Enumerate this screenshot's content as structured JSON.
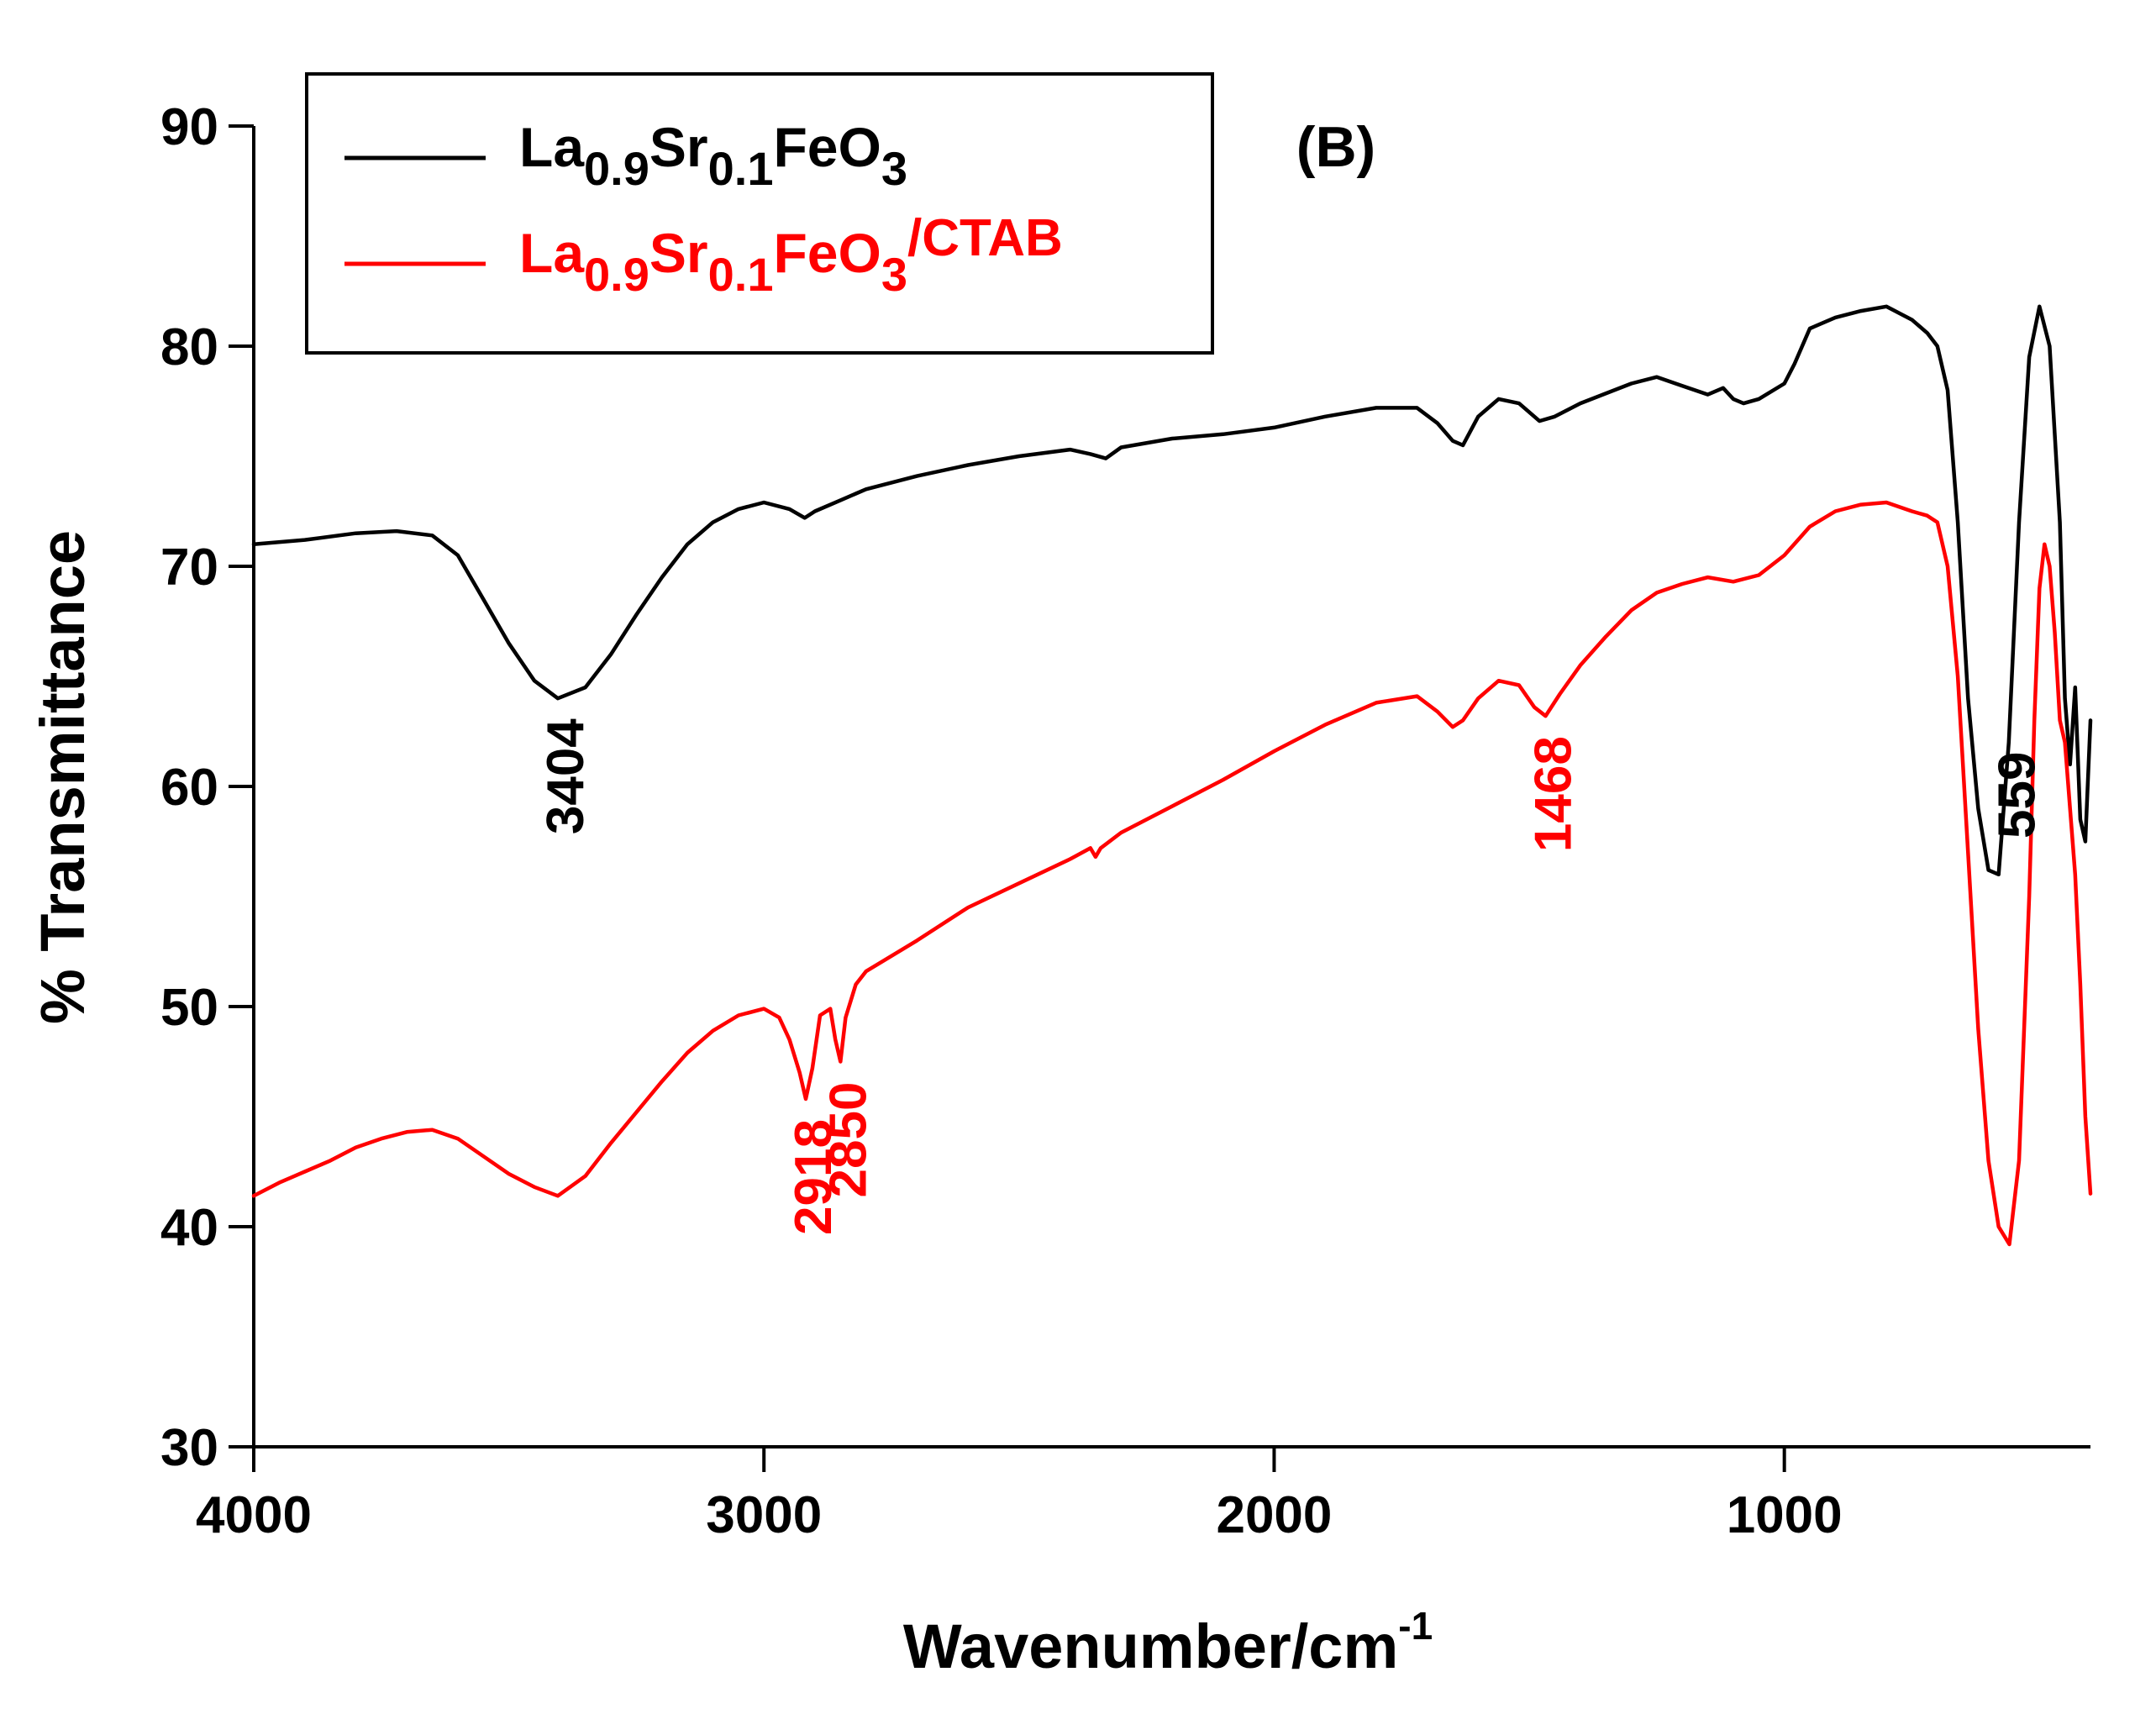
{
  "chart_data": {
    "type": "line",
    "title": "",
    "panel_label": "(B)",
    "xlabel": "Wavenumber/cm",
    "xlabel_sup": "-1",
    "ylabel": "% Transmittance",
    "xlim": [
      4000,
      400
    ],
    "ylim": [
      30,
      90
    ],
    "x_ticks": [
      4000,
      3000,
      2000,
      1000
    ],
    "x_tick_labels": [
      "4000",
      "3000",
      "2000",
      "1000"
    ],
    "y_ticks": [
      30,
      40,
      50,
      60,
      70,
      80,
      90
    ],
    "y_tick_labels": [
      "30",
      "40",
      "50",
      "60",
      "70",
      "80",
      "90"
    ],
    "grid": false,
    "legend_position": "top-left",
    "series": [
      {
        "name": "La0.9Sr0.1FeO3",
        "legend_parts": [
          {
            "text": "La",
            "sub": false
          },
          {
            "text": "0.9",
            "sub": true
          },
          {
            "text": "Sr",
            "sub": false
          },
          {
            "text": "0.1",
            "sub": true
          },
          {
            "text": "FeO",
            "sub": false
          },
          {
            "text": "3",
            "sub": true
          }
        ],
        "color": "#000000",
        "x": [
          4000,
          3900,
          3800,
          3720,
          3650,
          3600,
          3550,
          3500,
          3450,
          3404,
          3350,
          3300,
          3250,
          3200,
          3150,
          3100,
          3050,
          3000,
          2950,
          2920,
          2900,
          2850,
          2800,
          2700,
          2600,
          2500,
          2400,
          2360,
          2330,
          2300,
          2200,
          2100,
          2000,
          1900,
          1800,
          1720,
          1680,
          1650,
          1630,
          1600,
          1560,
          1520,
          1480,
          1450,
          1400,
          1300,
          1250,
          1200,
          1150,
          1120,
          1100,
          1080,
          1050,
          1000,
          980,
          950,
          900,
          850,
          800,
          750,
          720,
          700,
          680,
          660,
          640,
          620,
          600,
          580,
          560,
          540,
          520,
          500,
          480,
          470,
          460,
          450,
          440,
          430,
          420,
          410,
          400
        ],
        "values": [
          71.0,
          71.2,
          71.5,
          71.6,
          71.4,
          70.5,
          68.5,
          66.5,
          64.8,
          64.0,
          64.5,
          66.0,
          67.8,
          69.5,
          71.0,
          72.0,
          72.6,
          72.9,
          72.6,
          72.2,
          72.5,
          73.0,
          73.5,
          74.1,
          74.6,
          75.0,
          75.3,
          75.1,
          74.9,
          75.4,
          75.8,
          76.0,
          76.3,
          76.8,
          77.2,
          77.2,
          76.5,
          75.7,
          75.5,
          76.8,
          77.6,
          77.4,
          76.6,
          76.8,
          77.4,
          78.3,
          78.6,
          78.2,
          77.8,
          78.1,
          77.6,
          77.4,
          77.6,
          78.3,
          79.2,
          80.8,
          81.3,
          81.6,
          81.8,
          81.2,
          80.6,
          80.0,
          78.0,
          72.0,
          64.0,
          59.0,
          56.2,
          56.0,
          62.0,
          72.0,
          79.5,
          81.8,
          80.0,
          76.0,
          72.0,
          64.0,
          61.0,
          64.5,
          58.5,
          57.5,
          63.0
        ]
      },
      {
        "name": "La0.9Sr0.1FeO3/CTAB",
        "legend_parts": [
          {
            "text": "La",
            "sub": false
          },
          {
            "text": "0.9",
            "sub": true
          },
          {
            "text": "Sr",
            "sub": false
          },
          {
            "text": "0.1",
            "sub": true
          },
          {
            "text": "FeO",
            "sub": false
          },
          {
            "text": "3",
            "sub": true
          },
          {
            "text": "/CTAB",
            "sub": false,
            "raised": true
          }
        ],
        "color": "#ff0000",
        "x": [
          4000,
          3950,
          3900,
          3850,
          3800,
          3750,
          3700,
          3650,
          3600,
          3550,
          3500,
          3450,
          3404,
          3350,
          3300,
          3250,
          3200,
          3150,
          3100,
          3050,
          3000,
          2970,
          2950,
          2930,
          2918,
          2905,
          2890,
          2870,
          2860,
          2850,
          2840,
          2820,
          2800,
          2700,
          2600,
          2500,
          2400,
          2360,
          2350,
          2340,
          2300,
          2200,
          2100,
          2000,
          1900,
          1800,
          1720,
          1680,
          1650,
          1630,
          1600,
          1560,
          1520,
          1490,
          1468,
          1440,
          1400,
          1350,
          1300,
          1250,
          1200,
          1150,
          1100,
          1050,
          1000,
          950,
          900,
          850,
          800,
          750,
          720,
          700,
          680,
          660,
          640,
          620,
          600,
          580,
          559,
          540,
          520,
          510,
          500,
          490,
          480,
          470,
          460,
          450,
          440,
          430,
          420,
          410,
          400
        ],
        "values": [
          41.4,
          42.0,
          42.5,
          43.0,
          43.6,
          44.0,
          44.3,
          44.4,
          44.0,
          43.2,
          42.4,
          41.8,
          41.4,
          42.3,
          43.8,
          45.2,
          46.6,
          47.9,
          48.9,
          49.6,
          49.9,
          49.5,
          48.5,
          47.0,
          45.8,
          47.2,
          49.6,
          49.9,
          48.5,
          47.5,
          49.5,
          51.0,
          51.6,
          53.0,
          54.5,
          55.6,
          56.7,
          57.2,
          56.8,
          57.2,
          57.9,
          59.1,
          60.3,
          61.6,
          62.8,
          63.8,
          64.1,
          63.4,
          62.7,
          63.0,
          64.0,
          64.8,
          64.6,
          63.6,
          63.2,
          64.2,
          65.5,
          66.8,
          68.0,
          68.8,
          69.2,
          69.5,
          69.3,
          69.6,
          70.5,
          71.8,
          72.5,
          72.8,
          72.9,
          72.5,
          72.3,
          72.0,
          70.0,
          65.0,
          57.0,
          49.0,
          43.0,
          40.0,
          39.2,
          43.0,
          55.0,
          63.0,
          69.0,
          71.0,
          70.0,
          67.0,
          63.0,
          62.0,
          59.0,
          56.0,
          51.0,
          45.0,
          41.5
        ]
      }
    ],
    "annotations": [
      {
        "text": "3404",
        "x": 3404,
        "series": 0,
        "color": "#000000"
      },
      {
        "text": "2918",
        "x": 2918,
        "series": 1,
        "color": "#ff0000"
      },
      {
        "text": "2850",
        "x": 2850,
        "series": 1,
        "color": "#ff0000"
      },
      {
        "text": "1468",
        "x": 1468,
        "series": 1,
        "color": "#ff0000"
      },
      {
        "text": "559",
        "x": 559,
        "series": 0,
        "color": "#000000"
      }
    ]
  }
}
